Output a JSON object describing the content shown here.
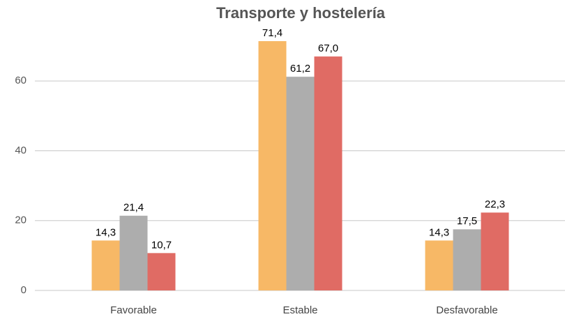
{
  "chart_data": {
    "type": "bar",
    "title": "Transporte y hostelería",
    "categories": [
      "Favorable",
      "Estable",
      "Desfavorable"
    ],
    "series": [
      {
        "color": "#F7B866",
        "values": [
          14.3,
          71.4,
          14.3
        ],
        "value_labels": [
          "14,3",
          "71,4",
          "14,3"
        ]
      },
      {
        "color": "#ADADAD",
        "values": [
          21.4,
          61.2,
          17.5
        ],
        "value_labels": [
          "21,4",
          "61,2",
          "17,5"
        ]
      },
      {
        "color": "#E06B64",
        "values": [
          10.7,
          67.0,
          22.3
        ],
        "value_labels": [
          "10,7",
          "67,0",
          "22,3"
        ]
      }
    ],
    "ylim": [
      0,
      75
    ],
    "yticks": [
      0,
      20,
      40,
      60
    ],
    "grid": true
  }
}
